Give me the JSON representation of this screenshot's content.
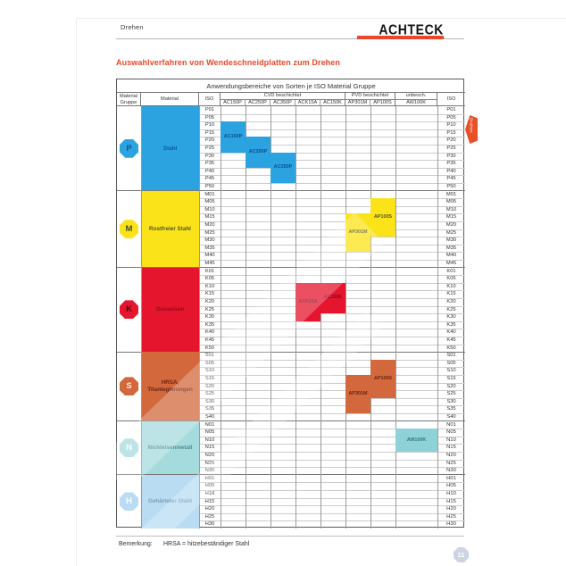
{
  "header": {
    "page_label": "Drehen",
    "brand": "ACHTECK",
    "brand_accent_color": "#e8472b"
  },
  "section_title": "Auswahlverfahren von Wendeschneidplatten zum Drehen",
  "table": {
    "title": "Anwendungsbereiche von Sorten je ISO Material Gruppe",
    "headers": {
      "material_gruppe": "Material\nGruppe",
      "material": "Material",
      "iso": "ISO",
      "cvd": "CVD beschichtet",
      "pvd": "PVD  beschichtet",
      "unbesch": "unbesch.",
      "iso_right": "ISO"
    },
    "grades": [
      "AC150P",
      "AC250P",
      "AC350P",
      "ACK15A",
      "AC150K",
      "AP301M",
      "AP100S",
      "AW100K"
    ],
    "groups": [
      {
        "code": "P",
        "material": "Stahl",
        "color": "#2aa3e0",
        "label_color": "#0d5a9e",
        "letter_color": "#0d5a9e",
        "block_color": "#2aa3e0",
        "block_label_color": "#0a4f8f",
        "rows": [
          "P01",
          "P05",
          "P10",
          "P15",
          "P20",
          "P25",
          "P30",
          "P35",
          "P40",
          "P45",
          "P50"
        ],
        "blocks": [
          {
            "grade": "AC150P",
            "from": "P10",
            "to": "P25"
          },
          {
            "grade": "AC250P",
            "from": "P20",
            "to": "P35"
          },
          {
            "grade": "AC350P",
            "from": "P30",
            "to": "P45"
          }
        ]
      },
      {
        "code": "M",
        "material": "Rostfreier Stahl",
        "color": "#fbe319",
        "label_color": "#55552a",
        "letter_color": "#4a4a2a",
        "block_color": "#fbe319",
        "block_label_color": "#55552a",
        "rows": [
          "M01",
          "M05",
          "M10",
          "M15",
          "M20",
          "M25",
          "M30",
          "M35",
          "M40",
          "M45"
        ],
        "blocks": [
          {
            "grade": "AP301M",
            "from": "M15",
            "to": "M35"
          },
          {
            "grade": "AP100S",
            "from": "M05",
            "to": "M25"
          }
        ]
      },
      {
        "code": "K",
        "material": "Gusseisen",
        "color": "#e5152e",
        "label_color": "#8a0f1f",
        "letter_color": "#4f0a16",
        "block_color": "#e5152e",
        "block_label_color": "#7e0d1e",
        "rows": [
          "K01",
          "K05",
          "K10",
          "K15",
          "K20",
          "K25",
          "K30",
          "K35",
          "K40",
          "K45",
          "K50"
        ],
        "blocks": [
          {
            "grade": "ACK15A",
            "from": "K10",
            "to": "K30"
          },
          {
            "grade": "AC150K",
            "from": "K10",
            "to": "K25"
          }
        ]
      },
      {
        "code": "S",
        "material": "HRSA,\nTitanlegierungen",
        "color": "#d2683c",
        "label_color": "#6e2410",
        "letter_color": "#f8e9e2",
        "block_color": "#d2683c",
        "block_label_color": "#6e2410",
        "rows": [
          "S01",
          "S05",
          "S10",
          "S15",
          "S20",
          "S25",
          "S30",
          "S35",
          "S40"
        ],
        "blocks": [
          {
            "grade": "AP301M",
            "from": "S15",
            "to": "S35"
          },
          {
            "grade": "AP100S",
            "from": "S05",
            "to": "S25"
          }
        ]
      },
      {
        "code": "N",
        "material": "Nichteisenmetall",
        "color": "#a6dbde",
        "label_color": "#4d8e92",
        "letter_color": "#ffffff",
        "block_color": "#8ed2d8",
        "block_label_color": "#2e7d85",
        "rows": [
          "N01",
          "N05",
          "N10",
          "N15",
          "N20",
          "N25",
          "N30"
        ],
        "blocks": [
          {
            "grade": "AW100K",
            "from": "N05",
            "to": "N15"
          }
        ]
      },
      {
        "code": "H",
        "material": "Gehärteter Stahl",
        "color": "#b9dcf2",
        "label_color": "#7d9cb8",
        "letter_color": "#ffffff",
        "block_color": "#b9dcf2",
        "block_label_color": "#7d9cb8",
        "rows": [
          "H01",
          "H05",
          "H10",
          "H15",
          "H20",
          "H25",
          "H30"
        ],
        "blocks": []
      }
    ]
  },
  "side_tab": {
    "label": "Drehen",
    "color": "#e8502a"
  },
  "footer": {
    "note_label": "Bemerkung:",
    "note": "HRSA = hitzebeständiger Stahl",
    "page_badge": "11"
  }
}
